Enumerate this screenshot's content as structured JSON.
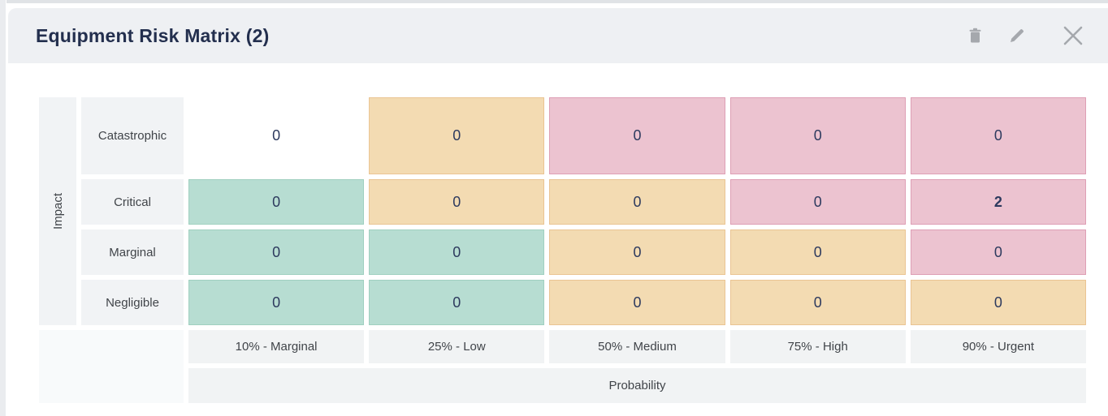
{
  "header": {
    "title": "Equipment Risk Matrix (2)"
  },
  "toolbar": {
    "delete": "delete",
    "edit": "edit",
    "close": "close"
  },
  "chart_data": {
    "type": "heatmap",
    "title": "Equipment Risk Matrix (2)",
    "xlabel": "Probability",
    "ylabel": "Impact",
    "columns": [
      "10% - Marginal",
      "25% - Low",
      "50% - Medium",
      "75% - High",
      "90% - Urgent"
    ],
    "rows": [
      "Catastrophic",
      "Critical",
      "Marginal",
      "Negligible"
    ],
    "values": [
      [
        0,
        0,
        0,
        0,
        0
      ],
      [
        0,
        0,
        0,
        0,
        2
      ],
      [
        0,
        0,
        0,
        0,
        0
      ],
      [
        0,
        0,
        0,
        0,
        0
      ]
    ],
    "cell_levels": [
      [
        "none",
        "medium",
        "high",
        "high",
        "high"
      ],
      [
        "low",
        "medium",
        "medium",
        "high",
        "high"
      ],
      [
        "low",
        "low",
        "medium",
        "medium",
        "high"
      ],
      [
        "low",
        "low",
        "medium",
        "medium",
        "medium"
      ]
    ],
    "level_colors": {
      "low": "#b7ddd2",
      "medium": "#f3dbb2",
      "high": "#ecc3d0",
      "none": "#ffffff"
    }
  }
}
